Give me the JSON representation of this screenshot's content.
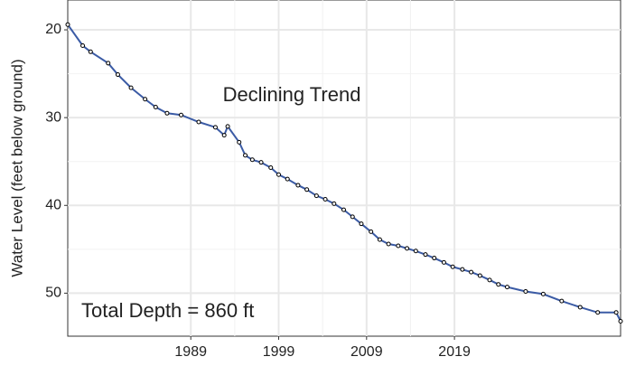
{
  "chart_data": {
    "type": "line",
    "y_label": "Water Level (feet below ground)",
    "annotations": [
      "Declining Trend",
      "Total Depth = 860 ft"
    ],
    "x": [
      1975.0,
      1976.7,
      1977.6,
      1979.6,
      1980.7,
      1982.2,
      1983.8,
      1985.0,
      1986.3,
      1987.9,
      1989.9,
      1991.8,
      1992.8,
      1993.2,
      1994.5,
      1995.2,
      1996.0,
      1997.0,
      1998.1,
      1999.0,
      2000.0,
      2001.2,
      2002.2,
      2003.3,
      2004.3,
      2005.3,
      2006.4,
      2007.4,
      2008.4,
      2009.5,
      2010.5,
      2011.5,
      2012.6,
      2013.6,
      2014.6,
      2015.7,
      2016.7,
      2017.8,
      2018.8,
      2019.9,
      2020.9,
      2021.9,
      2023.0,
      2024.0,
      2025.0,
      2027.1,
      2029.1,
      2031.2,
      2033.3,
      2035.3,
      2037.4,
      2037.9
    ],
    "series": [
      {
        "name": "Water Level",
        "color": "#3b5ba5",
        "values": [
          19.4,
          21.8,
          22.5,
          23.8,
          25.1,
          26.6,
          27.9,
          28.8,
          29.5,
          29.7,
          30.5,
          31.1,
          32.0,
          31.0,
          32.8,
          34.3,
          34.8,
          35.1,
          35.7,
          36.5,
          37.0,
          37.7,
          38.2,
          38.9,
          39.3,
          39.8,
          40.5,
          41.3,
          42.1,
          43.0,
          43.9,
          44.4,
          44.6,
          44.9,
          45.2,
          45.6,
          46.0,
          46.5,
          47.0,
          47.3,
          47.6,
          48.0,
          48.5,
          49.0,
          49.3,
          49.8,
          50.1,
          50.9,
          51.6,
          52.2,
          52.2,
          53.2
        ]
      }
    ],
    "xlim": [
      1975.0,
      2037.9
    ],
    "xticks": [
      1989,
      1999,
      2009,
      2019
    ],
    "ylim": [
      16.6,
      54.9
    ],
    "yticks": [
      20,
      30,
      40,
      50
    ],
    "y_reversed": true,
    "grid": true,
    "marker_color": "#000000"
  }
}
